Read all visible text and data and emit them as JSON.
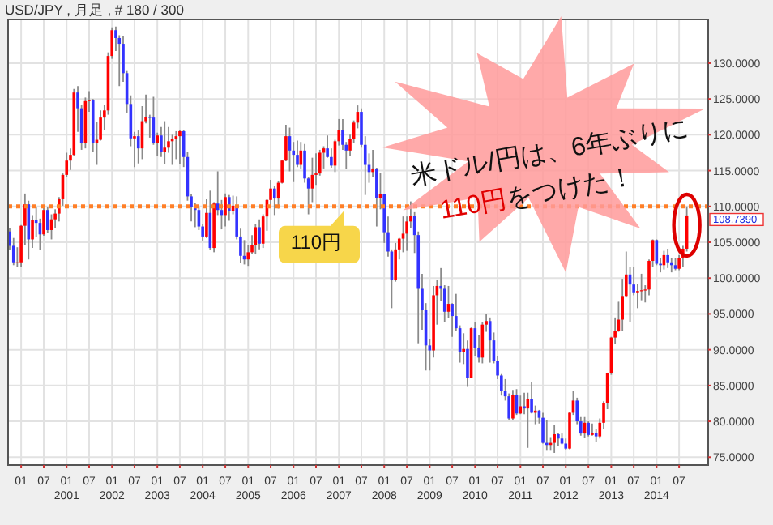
{
  "chart_data": {
    "type": "candlestick",
    "title": "USD/JPY , 月足 , # 180 / 300",
    "x": [
      "1999-10",
      "1999-11",
      "1999-12",
      "2000-01",
      "2000-02",
      "2000-03",
      "2000-04",
      "2000-05",
      "2000-06",
      "2000-07",
      "2000-08",
      "2000-09",
      "2000-10",
      "2000-11",
      "2000-12",
      "2001-01",
      "2001-02",
      "2001-03",
      "2001-04",
      "2001-05",
      "2001-06",
      "2001-07",
      "2001-08",
      "2001-09",
      "2001-10",
      "2001-11",
      "2001-12",
      "2002-01",
      "2002-02",
      "2002-03",
      "2002-04",
      "2002-05",
      "2002-06",
      "2002-07",
      "2002-08",
      "2002-09",
      "2002-10",
      "2002-11",
      "2002-12",
      "2003-01",
      "2003-02",
      "2003-03",
      "2003-04",
      "2003-05",
      "2003-06",
      "2003-07",
      "2003-08",
      "2003-09",
      "2003-10",
      "2003-11",
      "2003-12",
      "2004-01",
      "2004-02",
      "2004-03",
      "2004-04",
      "2004-05",
      "2004-06",
      "2004-07",
      "2004-08",
      "2004-09",
      "2004-10",
      "2004-11",
      "2004-12",
      "2005-01",
      "2005-02",
      "2005-03",
      "2005-04",
      "2005-05",
      "2005-06",
      "2005-07",
      "2005-08",
      "2005-09",
      "2005-10",
      "2005-11",
      "2005-12",
      "2006-01",
      "2006-02",
      "2006-03",
      "2006-04",
      "2006-05",
      "2006-06",
      "2006-07",
      "2006-08",
      "2006-09",
      "2006-10",
      "2006-11",
      "2006-12",
      "2007-01",
      "2007-02",
      "2007-03",
      "2007-04",
      "2007-05",
      "2007-06",
      "2007-07",
      "2007-08",
      "2007-09",
      "2007-10",
      "2007-11",
      "2007-12",
      "2008-01",
      "2008-02",
      "2008-03",
      "2008-04",
      "2008-05",
      "2008-06",
      "2008-07",
      "2008-08",
      "2008-09",
      "2008-10",
      "2008-11",
      "2008-12",
      "2009-01",
      "2009-02",
      "2009-03",
      "2009-04",
      "2009-05",
      "2009-06",
      "2009-07",
      "2009-08",
      "2009-09",
      "2009-10",
      "2009-11",
      "2009-12",
      "2010-01",
      "2010-02",
      "2010-03",
      "2010-04",
      "2010-05",
      "2010-06",
      "2010-07",
      "2010-08",
      "2010-09",
      "2010-10",
      "2010-11",
      "2010-12",
      "2011-01",
      "2011-02",
      "2011-03",
      "2011-04",
      "2011-05",
      "2011-06",
      "2011-07",
      "2011-08",
      "2011-09",
      "2011-10",
      "2011-11",
      "2011-12",
      "2012-01",
      "2012-02",
      "2012-03",
      "2012-04",
      "2012-05",
      "2012-06",
      "2012-07",
      "2012-08",
      "2012-09",
      "2012-10",
      "2012-11",
      "2012-12",
      "2013-01",
      "2013-02",
      "2013-03",
      "2013-04",
      "2013-05",
      "2013-06",
      "2013-07",
      "2013-08",
      "2013-09",
      "2013-10",
      "2013-11",
      "2013-12",
      "2014-01",
      "2014-02",
      "2014-03",
      "2014-04",
      "2014-05",
      "2014-06",
      "2014-07",
      "2014-08",
      "2014-09"
    ],
    "ohlc": [
      [
        106.5,
        107.0,
        103.9,
        104.5
      ],
      [
        104.5,
        105.6,
        101.8,
        102.2
      ],
      [
        102.2,
        104.3,
        101.5,
        102.2
      ],
      [
        102.2,
        107.4,
        101.6,
        107.3
      ],
      [
        107.3,
        111.8,
        104.6,
        110.3
      ],
      [
        110.3,
        110.8,
        102.6,
        105.4
      ],
      [
        105.4,
        108.8,
        104.2,
        108.1
      ],
      [
        108.1,
        109.9,
        105.7,
        107.7
      ],
      [
        107.7,
        108.3,
        103.9,
        106.1
      ],
      [
        106.1,
        109.9,
        105.9,
        109.5
      ],
      [
        109.5,
        109.9,
        106.3,
        106.7
      ],
      [
        106.7,
        108.9,
        105.4,
        108.2
      ],
      [
        108.2,
        109.6,
        107.0,
        109.0
      ],
      [
        109.0,
        111.3,
        107.9,
        111.0
      ],
      [
        111.0,
        114.6,
        110.1,
        114.4
      ],
      [
        114.4,
        117.5,
        114.1,
        116.4
      ],
      [
        116.4,
        118.1,
        115.1,
        117.2
      ],
      [
        117.2,
        126.4,
        117.0,
        125.9
      ],
      [
        125.9,
        126.8,
        120.4,
        123.7
      ],
      [
        123.7,
        124.2,
        117.9,
        118.9
      ],
      [
        118.9,
        125.2,
        118.1,
        124.7
      ],
      [
        124.7,
        126.1,
        123.2,
        124.9
      ],
      [
        124.9,
        125.0,
        117.6,
        118.9
      ],
      [
        118.9,
        121.8,
        115.8,
        119.3
      ],
      [
        119.3,
        123.4,
        119.2,
        122.4
      ],
      [
        122.4,
        124.2,
        120.7,
        123.4
      ],
      [
        123.4,
        131.5,
        122.8,
        131.0
      ],
      [
        131.0,
        135.0,
        130.6,
        134.6
      ],
      [
        134.6,
        135.1,
        131.7,
        133.5
      ],
      [
        133.5,
        133.9,
        126.8,
        132.7
      ],
      [
        132.7,
        133.8,
        127.4,
        128.6
      ],
      [
        128.6,
        128.9,
        123.1,
        124.3
      ],
      [
        124.3,
        125.5,
        118.4,
        119.5
      ],
      [
        119.5,
        120.4,
        115.5,
        119.8
      ],
      [
        119.8,
        120.6,
        116.0,
        118.1
      ],
      [
        118.1,
        124.0,
        116.6,
        121.9
      ],
      [
        121.9,
        125.6,
        121.6,
        122.5
      ],
      [
        122.5,
        122.8,
        119.6,
        122.4
      ],
      [
        122.4,
        125.3,
        118.6,
        118.8
      ],
      [
        118.8,
        120.3,
        117.0,
        119.9
      ],
      [
        119.9,
        121.1,
        116.9,
        117.6
      ],
      [
        117.6,
        121.9,
        115.9,
        118.2
      ],
      [
        118.2,
        121.1,
        117.5,
        119.1
      ],
      [
        119.1,
        120.0,
        115.8,
        119.4
      ],
      [
        119.4,
        120.5,
        116.6,
        119.8
      ],
      [
        119.8,
        120.6,
        115.9,
        120.5
      ],
      [
        120.5,
        120.6,
        115.5,
        116.9
      ],
      [
        116.9,
        117.6,
        110.8,
        111.4
      ],
      [
        111.4,
        111.7,
        107.9,
        109.9
      ],
      [
        109.9,
        110.5,
        107.1,
        109.5
      ],
      [
        109.5,
        109.9,
        106.7,
        107.2
      ],
      [
        107.2,
        107.6,
        105.2,
        105.8
      ],
      [
        105.8,
        111.0,
        105.6,
        109.1
      ],
      [
        109.1,
        112.2,
        103.9,
        104.2
      ],
      [
        104.2,
        110.6,
        103.6,
        110.4
      ],
      [
        110.4,
        114.9,
        108.8,
        109.5
      ],
      [
        109.5,
        110.9,
        106.8,
        108.8
      ],
      [
        108.8,
        111.8,
        107.2,
        111.3
      ],
      [
        111.3,
        111.6,
        108.0,
        109.3
      ],
      [
        109.3,
        111.5,
        108.9,
        110.1
      ],
      [
        110.1,
        111.4,
        105.4,
        105.8
      ],
      [
        105.8,
        106.9,
        102.1,
        103.1
      ],
      [
        103.1,
        105.3,
        101.9,
        102.6
      ],
      [
        102.6,
        104.6,
        101.7,
        103.6
      ],
      [
        103.6,
        106.0,
        103.3,
        104.6
      ],
      [
        104.6,
        107.5,
        103.3,
        107.1
      ],
      [
        107.1,
        108.2,
        104.0,
        104.8
      ],
      [
        104.8,
        108.9,
        104.2,
        108.6
      ],
      [
        108.6,
        111.0,
        106.6,
        110.9
      ],
      [
        110.9,
        113.7,
        109.9,
        112.5
      ],
      [
        112.5,
        112.8,
        108.8,
        111.1
      ],
      [
        111.1,
        113.6,
        109.7,
        113.3
      ],
      [
        113.3,
        116.5,
        113.2,
        116.4
      ],
      [
        116.4,
        121.4,
        116.3,
        119.8
      ],
      [
        119.8,
        121.0,
        114.9,
        117.8
      ],
      [
        117.8,
        119.0,
        113.4,
        117.2
      ],
      [
        117.2,
        119.2,
        115.5,
        115.8
      ],
      [
        115.8,
        119.0,
        115.3,
        117.8
      ],
      [
        117.8,
        118.7,
        113.3,
        113.9
      ],
      [
        113.9,
        114.1,
        108.9,
        112.5
      ],
      [
        112.5,
        116.8,
        110.6,
        114.4
      ],
      [
        114.4,
        117.4,
        113.0,
        114.6
      ],
      [
        114.6,
        117.9,
        114.3,
        117.5
      ],
      [
        117.5,
        118.4,
        115.3,
        118.1
      ],
      [
        118.1,
        119.9,
        116.8,
        116.9
      ],
      [
        116.9,
        118.1,
        115.4,
        115.7
      ],
      [
        115.7,
        119.3,
        114.8,
        119.1
      ],
      [
        119.1,
        122.2,
        118.5,
        120.7
      ],
      [
        120.7,
        122.2,
        117.9,
        118.6
      ],
      [
        118.6,
        119.0,
        115.2,
        117.8
      ],
      [
        117.8,
        120.0,
        117.0,
        119.4
      ],
      [
        119.4,
        122.0,
        118.8,
        121.7
      ],
      [
        121.7,
        124.1,
        120.9,
        123.2
      ],
      [
        123.2,
        123.7,
        118.2,
        118.6
      ],
      [
        118.6,
        119.8,
        111.6,
        115.8
      ],
      [
        115.8,
        117.4,
        113.3,
        114.8
      ],
      [
        114.8,
        117.9,
        114.1,
        115.3
      ],
      [
        115.3,
        115.4,
        107.2,
        111.2
      ],
      [
        111.2,
        114.7,
        109.6,
        111.7
      ],
      [
        111.7,
        111.7,
        104.9,
        106.4
      ],
      [
        106.4,
        108.6,
        103.0,
        103.7
      ],
      [
        103.7,
        104.0,
        95.8,
        99.7
      ],
      [
        99.7,
        104.9,
        99.5,
        104.0
      ],
      [
        104.0,
        105.6,
        102.6,
        105.5
      ],
      [
        105.5,
        108.6,
        103.6,
        106.2
      ],
      [
        106.2,
        108.6,
        103.8,
        107.9
      ],
      [
        107.9,
        110.7,
        107.0,
        108.7
      ],
      [
        108.7,
        109.2,
        103.5,
        106.0
      ],
      [
        106.0,
        106.5,
        90.9,
        98.5
      ],
      [
        98.5,
        100.6,
        92.8,
        95.5
      ],
      [
        95.5,
        96.5,
        87.1,
        90.6
      ],
      [
        90.6,
        91.5,
        87.1,
        89.9
      ],
      [
        89.9,
        98.9,
        88.9,
        97.6
      ],
      [
        97.6,
        99.7,
        93.5,
        98.9
      ],
      [
        98.9,
        101.4,
        96.8,
        98.5
      ],
      [
        98.5,
        99.0,
        93.9,
        95.3
      ],
      [
        95.3,
        98.9,
        94.4,
        96.4
      ],
      [
        96.4,
        96.5,
        91.8,
        94.7
      ],
      [
        94.7,
        97.8,
        92.6,
        93.0
      ],
      [
        93.0,
        93.4,
        88.2,
        89.7
      ],
      [
        89.7,
        92.3,
        88.0,
        90.1
      ],
      [
        90.1,
        91.3,
        84.8,
        86.1
      ],
      [
        86.1,
        93.1,
        86.0,
        93.0
      ],
      [
        93.0,
        93.8,
        89.1,
        90.3
      ],
      [
        90.3,
        92.0,
        88.2,
        88.9
      ],
      [
        88.9,
        93.8,
        88.1,
        93.5
      ],
      [
        93.5,
        95.0,
        92.5,
        94.0
      ],
      [
        94.0,
        94.5,
        88.2,
        91.3
      ],
      [
        91.3,
        92.4,
        88.1,
        88.4
      ],
      [
        88.4,
        89.1,
        85.9,
        86.4
      ],
      [
        86.4,
        86.6,
        83.6,
        84.2
      ],
      [
        84.2,
        85.9,
        82.9,
        83.5
      ],
      [
        83.5,
        83.9,
        80.2,
        80.4
      ],
      [
        80.4,
        84.4,
        80.2,
        83.7
      ],
      [
        83.7,
        84.5,
        80.9,
        81.1
      ],
      [
        81.1,
        83.6,
        81.0,
        82.1
      ],
      [
        82.1,
        84.0,
        81.0,
        81.8
      ],
      [
        81.8,
        84.0,
        76.3,
        83.1
      ],
      [
        83.1,
        85.5,
        81.1,
        81.2
      ],
      [
        81.2,
        82.2,
        79.6,
        81.5
      ],
      [
        81.5,
        81.6,
        79.7,
        80.5
      ],
      [
        80.5,
        81.2,
        76.9,
        77.0
      ],
      [
        77.0,
        80.2,
        75.9,
        76.7
      ],
      [
        76.7,
        77.8,
        75.9,
        77.0
      ],
      [
        77.0,
        79.5,
        75.6,
        78.2
      ],
      [
        78.2,
        78.3,
        76.6,
        77.6
      ],
      [
        77.6,
        78.3,
        76.8,
        76.9
      ],
      [
        76.9,
        77.6,
        76.0,
        76.2
      ],
      [
        76.2,
        81.3,
        76.1,
        81.2
      ],
      [
        81.2,
        84.2,
        80.9,
        82.9
      ],
      [
        82.9,
        83.3,
        79.6,
        80.0
      ],
      [
        80.0,
        80.6,
        78.0,
        78.3
      ],
      [
        78.3,
        80.6,
        77.7,
        79.8
      ],
      [
        79.8,
        80.0,
        77.9,
        78.1
      ],
      [
        78.1,
        79.7,
        78.0,
        78.4
      ],
      [
        78.4,
        78.9,
        77.1,
        77.9
      ],
      [
        77.9,
        80.4,
        77.6,
        79.8
      ],
      [
        79.8,
        82.8,
        79.0,
        82.5
      ],
      [
        82.5,
        86.8,
        81.7,
        86.7
      ],
      [
        86.7,
        91.8,
        86.5,
        91.7
      ],
      [
        91.7,
        94.5,
        90.8,
        92.6
      ],
      [
        92.6,
        96.7,
        92.5,
        94.2
      ],
      [
        94.2,
        99.9,
        92.6,
        97.5
      ],
      [
        97.5,
        103.7,
        97.3,
        100.5
      ],
      [
        100.5,
        101.5,
        93.8,
        99.1
      ],
      [
        99.1,
        101.5,
        97.6,
        97.9
      ],
      [
        97.9,
        99.2,
        95.8,
        98.2
      ],
      [
        98.2,
        100.6,
        96.9,
        98.3
      ],
      [
        98.3,
        99.0,
        96.6,
        98.4
      ],
      [
        98.4,
        102.6,
        97.6,
        102.4
      ],
      [
        102.4,
        105.4,
        101.6,
        105.3
      ],
      [
        105.3,
        105.4,
        101.8,
        102.0
      ],
      [
        102.0,
        102.8,
        100.8,
        101.8
      ],
      [
        101.8,
        103.8,
        101.2,
        103.2
      ],
      [
        103.2,
        104.1,
        101.4,
        102.2
      ],
      [
        102.2,
        102.8,
        100.8,
        101.8
      ],
      [
        101.8,
        102.8,
        101.1,
        101.3
      ],
      [
        101.3,
        103.2,
        101.1,
        102.8
      ],
      [
        102.8,
        104.5,
        101.5,
        104.1
      ],
      [
        104.1,
        110.0,
        103.7,
        108.739
      ]
    ],
    "xlim": [
      "1999-09-18",
      "2015-02-20"
    ],
    "xticks": [
      {
        "value": "2000-01",
        "label": "01"
      },
      {
        "value": "2000-07",
        "label": "07"
      },
      {
        "value": "2001-01",
        "label": "01\n2001"
      },
      {
        "value": "2001-07",
        "label": "07"
      },
      {
        "value": "2002-01",
        "label": "01\n2002"
      },
      {
        "value": "2002-07",
        "label": "07"
      },
      {
        "value": "2003-01",
        "label": "01\n2003"
      },
      {
        "value": "2003-07",
        "label": "07"
      },
      {
        "value": "2004-01",
        "label": "01\n2004"
      },
      {
        "value": "2004-07",
        "label": "07"
      },
      {
        "value": "2005-01",
        "label": "01\n2005"
      },
      {
        "value": "2005-07",
        "label": "07"
      },
      {
        "value": "2006-01",
        "label": "01\n2006"
      },
      {
        "value": "2006-07",
        "label": "07"
      },
      {
        "value": "2007-01",
        "label": "01\n2007"
      },
      {
        "value": "2007-07",
        "label": "07"
      },
      {
        "value": "2008-01",
        "label": "01\n2008"
      },
      {
        "value": "2008-07",
        "label": "07"
      },
      {
        "value": "2009-01",
        "label": "01\n2009"
      },
      {
        "value": "2009-07",
        "label": "07"
      },
      {
        "value": "2010-01",
        "label": "01\n2010"
      },
      {
        "value": "2010-07",
        "label": "07"
      },
      {
        "value": "2011-01",
        "label": "01\n2011"
      },
      {
        "value": "2011-07",
        "label": "07"
      },
      {
        "value": "2012-01",
        "label": "01\n2012"
      },
      {
        "value": "2012-07",
        "label": "07"
      },
      {
        "value": "2013-01",
        "label": "01\n2013"
      },
      {
        "value": "2013-07",
        "label": "07"
      },
      {
        "value": "2014-01",
        "label": "01\n2014"
      },
      {
        "value": "2014-07",
        "label": "07"
      }
    ],
    "ylim": [
      73.9,
      136.1
    ],
    "yticks": [
      {
        "value": 75,
        "label": "75.0000"
      },
      {
        "value": 80,
        "label": "80.0000"
      },
      {
        "value": 85,
        "label": "85.0000"
      },
      {
        "value": 90,
        "label": "90.0000"
      },
      {
        "value": 95,
        "label": "95.0000"
      },
      {
        "value": 100,
        "label": "100.0000"
      },
      {
        "value": 105,
        "label": "105.0000"
      },
      {
        "value": 110,
        "label": "110.0000"
      },
      {
        "value": 115,
        "label": "115.0000"
      },
      {
        "value": 120,
        "label": "120.0000"
      },
      {
        "value": 125,
        "label": "125.0000"
      },
      {
        "value": 130,
        "label": "130.0000"
      }
    ],
    "grid": true,
    "ref_lines": [
      {
        "axis": "y",
        "value": 110,
        "label": "110円",
        "color": "#ff7f27",
        "line_style": "dotted"
      }
    ],
    "annotations": [
      {
        "text": "108.7390",
        "x": "2014-09",
        "y": 108.739
      },
      "米ドル/円は、6年ぶりに",
      "110円",
      "をつけた！"
    ]
  }
}
